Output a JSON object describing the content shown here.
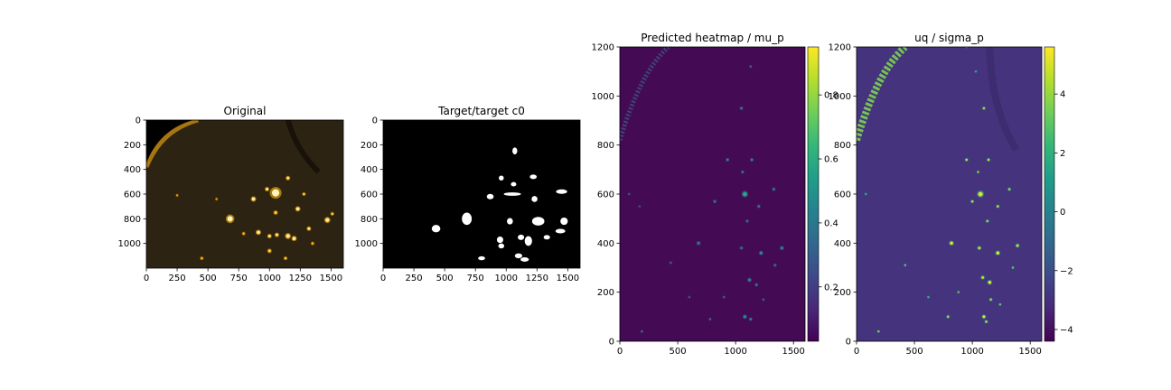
{
  "chart_data": [
    {
      "type": "image",
      "title": "Original",
      "colormap": "afmhot",
      "background_color": "#2c2312",
      "xlim": [
        0,
        1600
      ],
      "ylim": [
        1200,
        0
      ],
      "y_inverted": true,
      "xticks": [
        0,
        250,
        500,
        750,
        1000,
        1250,
        1500
      ],
      "yticks": [
        0,
        200,
        400,
        600,
        800,
        1000
      ],
      "spots": [
        {
          "x": 680,
          "y": 800,
          "r": 22,
          "v": 1.0
        },
        {
          "x": 1050,
          "y": 590,
          "r": 30,
          "v": 1.0
        },
        {
          "x": 1150,
          "y": 470,
          "r": 12,
          "v": 0.8
        },
        {
          "x": 870,
          "y": 640,
          "r": 14,
          "v": 0.9
        },
        {
          "x": 1230,
          "y": 720,
          "r": 14,
          "v": 0.9
        },
        {
          "x": 1470,
          "y": 810,
          "r": 16,
          "v": 0.9
        },
        {
          "x": 1050,
          "y": 750,
          "r": 12,
          "v": 0.7
        },
        {
          "x": 980,
          "y": 560,
          "r": 12,
          "v": 0.8
        },
        {
          "x": 1280,
          "y": 600,
          "r": 10,
          "v": 0.7
        },
        {
          "x": 910,
          "y": 910,
          "r": 14,
          "v": 0.9
        },
        {
          "x": 1000,
          "y": 1060,
          "r": 12,
          "v": 0.7
        },
        {
          "x": 1150,
          "y": 940,
          "r": 16,
          "v": 0.9
        },
        {
          "x": 1200,
          "y": 960,
          "r": 14,
          "v": 0.9
        },
        {
          "x": 1060,
          "y": 930,
          "r": 12,
          "v": 0.8
        },
        {
          "x": 1320,
          "y": 880,
          "r": 12,
          "v": 0.8
        },
        {
          "x": 1000,
          "y": 940,
          "r": 12,
          "v": 0.8
        },
        {
          "x": 1350,
          "y": 1000,
          "r": 10,
          "v": 0.6
        },
        {
          "x": 450,
          "y": 1120,
          "r": 10,
          "v": 0.6
        },
        {
          "x": 570,
          "y": 640,
          "r": 8,
          "v": 0.5
        },
        {
          "x": 790,
          "y": 920,
          "r": 10,
          "v": 0.6
        },
        {
          "x": 1130,
          "y": 1120,
          "r": 10,
          "v": 0.7
        },
        {
          "x": 250,
          "y": 610,
          "r": 8,
          "v": 0.5
        },
        {
          "x": 1510,
          "y": 760,
          "r": 10,
          "v": 0.7
        }
      ]
    },
    {
      "type": "image",
      "title": "Target/target c0",
      "colormap": "gray",
      "background_color": "#000000",
      "xlim": [
        0,
        1600
      ],
      "ylim": [
        1200,
        0
      ],
      "y_inverted": true,
      "xticks": [
        0,
        250,
        500,
        750,
        1000,
        1250,
        1500
      ],
      "yticks": [
        0,
        200,
        400,
        600,
        800,
        1000
      ],
      "blobs": [
        {
          "x": 1070,
          "y": 250,
          "rx": 20,
          "ry": 28
        },
        {
          "x": 960,
          "y": 470,
          "rx": 20,
          "ry": 20
        },
        {
          "x": 1220,
          "y": 460,
          "rx": 28,
          "ry": 18
        },
        {
          "x": 1060,
          "y": 520,
          "rx": 22,
          "ry": 18
        },
        {
          "x": 1050,
          "y": 600,
          "rx": 70,
          "ry": 14
        },
        {
          "x": 870,
          "y": 620,
          "rx": 28,
          "ry": 22
        },
        {
          "x": 1230,
          "y": 640,
          "rx": 24,
          "ry": 24
        },
        {
          "x": 1450,
          "y": 580,
          "rx": 45,
          "ry": 18
        },
        {
          "x": 680,
          "y": 800,
          "rx": 40,
          "ry": 50
        },
        {
          "x": 1030,
          "y": 820,
          "rx": 24,
          "ry": 26
        },
        {
          "x": 1260,
          "y": 820,
          "rx": 50,
          "ry": 35
        },
        {
          "x": 1470,
          "y": 820,
          "rx": 30,
          "ry": 30
        },
        {
          "x": 430,
          "y": 880,
          "rx": 35,
          "ry": 30
        },
        {
          "x": 1440,
          "y": 900,
          "rx": 40,
          "ry": 18
        },
        {
          "x": 950,
          "y": 970,
          "rx": 26,
          "ry": 26
        },
        {
          "x": 1120,
          "y": 950,
          "rx": 26,
          "ry": 22
        },
        {
          "x": 1180,
          "y": 980,
          "rx": 30,
          "ry": 40
        },
        {
          "x": 1330,
          "y": 950,
          "rx": 26,
          "ry": 18
        },
        {
          "x": 960,
          "y": 1020,
          "rx": 24,
          "ry": 20
        },
        {
          "x": 1100,
          "y": 1100,
          "rx": 30,
          "ry": 20
        },
        {
          "x": 1150,
          "y": 1130,
          "rx": 34,
          "ry": 18
        },
        {
          "x": 800,
          "y": 1120,
          "rx": 28,
          "ry": 16
        }
      ]
    },
    {
      "type": "heatmap",
      "title": "Predicted heatmap / mu_p",
      "colormap": "viridis",
      "background_color": "#440b54",
      "xlim": [
        0,
        1600
      ],
      "ylim": [
        0,
        1200
      ],
      "xticks": [
        0,
        500,
        1000,
        1500
      ],
      "yticks": [
        0,
        200,
        400,
        600,
        800,
        1000,
        1200
      ],
      "colorbar": {
        "vmin": 0.03,
        "vmax": 0.95,
        "ticks": [
          0.2,
          0.4,
          0.6,
          0.8
        ]
      },
      "spots": [
        {
          "x": 1080,
          "y": 600,
          "r": 18,
          "v": 0.6
        },
        {
          "x": 930,
          "y": 740,
          "r": 10,
          "v": 0.45
        },
        {
          "x": 1140,
          "y": 740,
          "r": 10,
          "v": 0.45
        },
        {
          "x": 1060,
          "y": 690,
          "r": 9,
          "v": 0.45
        },
        {
          "x": 1050,
          "y": 950,
          "r": 10,
          "v": 0.4
        },
        {
          "x": 1130,
          "y": 1120,
          "r": 8,
          "v": 0.35
        },
        {
          "x": 820,
          "y": 570,
          "r": 10,
          "v": 0.4
        },
        {
          "x": 1200,
          "y": 550,
          "r": 10,
          "v": 0.4
        },
        {
          "x": 1330,
          "y": 620,
          "r": 10,
          "v": 0.4
        },
        {
          "x": 1100,
          "y": 490,
          "r": 10,
          "v": 0.35
        },
        {
          "x": 1400,
          "y": 380,
          "r": 12,
          "v": 0.45
        },
        {
          "x": 1220,
          "y": 360,
          "r": 12,
          "v": 0.5
        },
        {
          "x": 1050,
          "y": 380,
          "r": 10,
          "v": 0.4
        },
        {
          "x": 680,
          "y": 400,
          "r": 12,
          "v": 0.4
        },
        {
          "x": 1120,
          "y": 250,
          "r": 12,
          "v": 0.45
        },
        {
          "x": 1180,
          "y": 230,
          "r": 10,
          "v": 0.4
        },
        {
          "x": 1080,
          "y": 100,
          "r": 12,
          "v": 0.5
        },
        {
          "x": 1130,
          "y": 90,
          "r": 10,
          "v": 0.45
        },
        {
          "x": 780,
          "y": 90,
          "r": 8,
          "v": 0.35
        },
        {
          "x": 190,
          "y": 40,
          "r": 8,
          "v": 0.35
        },
        {
          "x": 1340,
          "y": 310,
          "r": 10,
          "v": 0.35
        },
        {
          "x": 900,
          "y": 180,
          "r": 8,
          "v": 0.3
        },
        {
          "x": 1240,
          "y": 170,
          "r": 8,
          "v": 0.3
        },
        {
          "x": 440,
          "y": 320,
          "r": 8,
          "v": 0.3
        },
        {
          "x": 600,
          "y": 180,
          "r": 6,
          "v": 0.25
        },
        {
          "x": 80,
          "y": 600,
          "r": 6,
          "v": 0.25
        },
        {
          "x": 170,
          "y": 550,
          "r": 6,
          "v": 0.22
        }
      ]
    },
    {
      "type": "heatmap",
      "title": "uq / sigma_p",
      "colormap": "viridis",
      "background_color": "#46337e",
      "xlim": [
        0,
        1600
      ],
      "ylim": [
        0,
        1200
      ],
      "xticks": [
        0,
        500,
        1000,
        1500
      ],
      "yticks": [
        0,
        200,
        400,
        600,
        800,
        1000,
        1200
      ],
      "colorbar": {
        "vmin": -4.4,
        "vmax": 5.6,
        "ticks": [
          -4,
          -2,
          0,
          2,
          4
        ]
      },
      "spots": [
        {
          "x": 1070,
          "y": 600,
          "r": 20,
          "v": 0.95
        },
        {
          "x": 820,
          "y": 400,
          "r": 14,
          "v": 0.95
        },
        {
          "x": 1220,
          "y": 360,
          "r": 14,
          "v": 0.95
        },
        {
          "x": 1000,
          "y": 570,
          "r": 10,
          "v": 0.9
        },
        {
          "x": 1220,
          "y": 550,
          "r": 10,
          "v": 0.9
        },
        {
          "x": 1130,
          "y": 490,
          "r": 10,
          "v": 0.85
        },
        {
          "x": 950,
          "y": 740,
          "r": 10,
          "v": 0.9
        },
        {
          "x": 1140,
          "y": 740,
          "r": 10,
          "v": 0.9
        },
        {
          "x": 1050,
          "y": 690,
          "r": 8,
          "v": 0.85
        },
        {
          "x": 1060,
          "y": 380,
          "r": 12,
          "v": 0.9
        },
        {
          "x": 1390,
          "y": 390,
          "r": 12,
          "v": 0.9
        },
        {
          "x": 1100,
          "y": 950,
          "r": 10,
          "v": 0.85
        },
        {
          "x": 1320,
          "y": 620,
          "r": 10,
          "v": 0.85
        },
        {
          "x": 1150,
          "y": 240,
          "r": 14,
          "v": 0.95
        },
        {
          "x": 1090,
          "y": 260,
          "r": 12,
          "v": 0.9
        },
        {
          "x": 1160,
          "y": 170,
          "r": 10,
          "v": 0.85
        },
        {
          "x": 1100,
          "y": 100,
          "r": 12,
          "v": 0.95
        },
        {
          "x": 1120,
          "y": 80,
          "r": 10,
          "v": 0.9
        },
        {
          "x": 790,
          "y": 100,
          "r": 10,
          "v": 0.85
        },
        {
          "x": 190,
          "y": 40,
          "r": 8,
          "v": 0.8
        },
        {
          "x": 420,
          "y": 310,
          "r": 8,
          "v": 0.75
        },
        {
          "x": 880,
          "y": 200,
          "r": 8,
          "v": 0.75
        },
        {
          "x": 1350,
          "y": 300,
          "r": 8,
          "v": 0.75
        },
        {
          "x": 1240,
          "y": 150,
          "r": 8,
          "v": 0.75
        },
        {
          "x": 620,
          "y": 180,
          "r": 6,
          "v": 0.65
        },
        {
          "x": 80,
          "y": 600,
          "r": 6,
          "v": 0.6
        },
        {
          "x": 950,
          "y": 1200,
          "r": 6,
          "v": 0.6
        },
        {
          "x": 1030,
          "y": 1100,
          "r": 6,
          "v": 0.6
        }
      ]
    }
  ]
}
